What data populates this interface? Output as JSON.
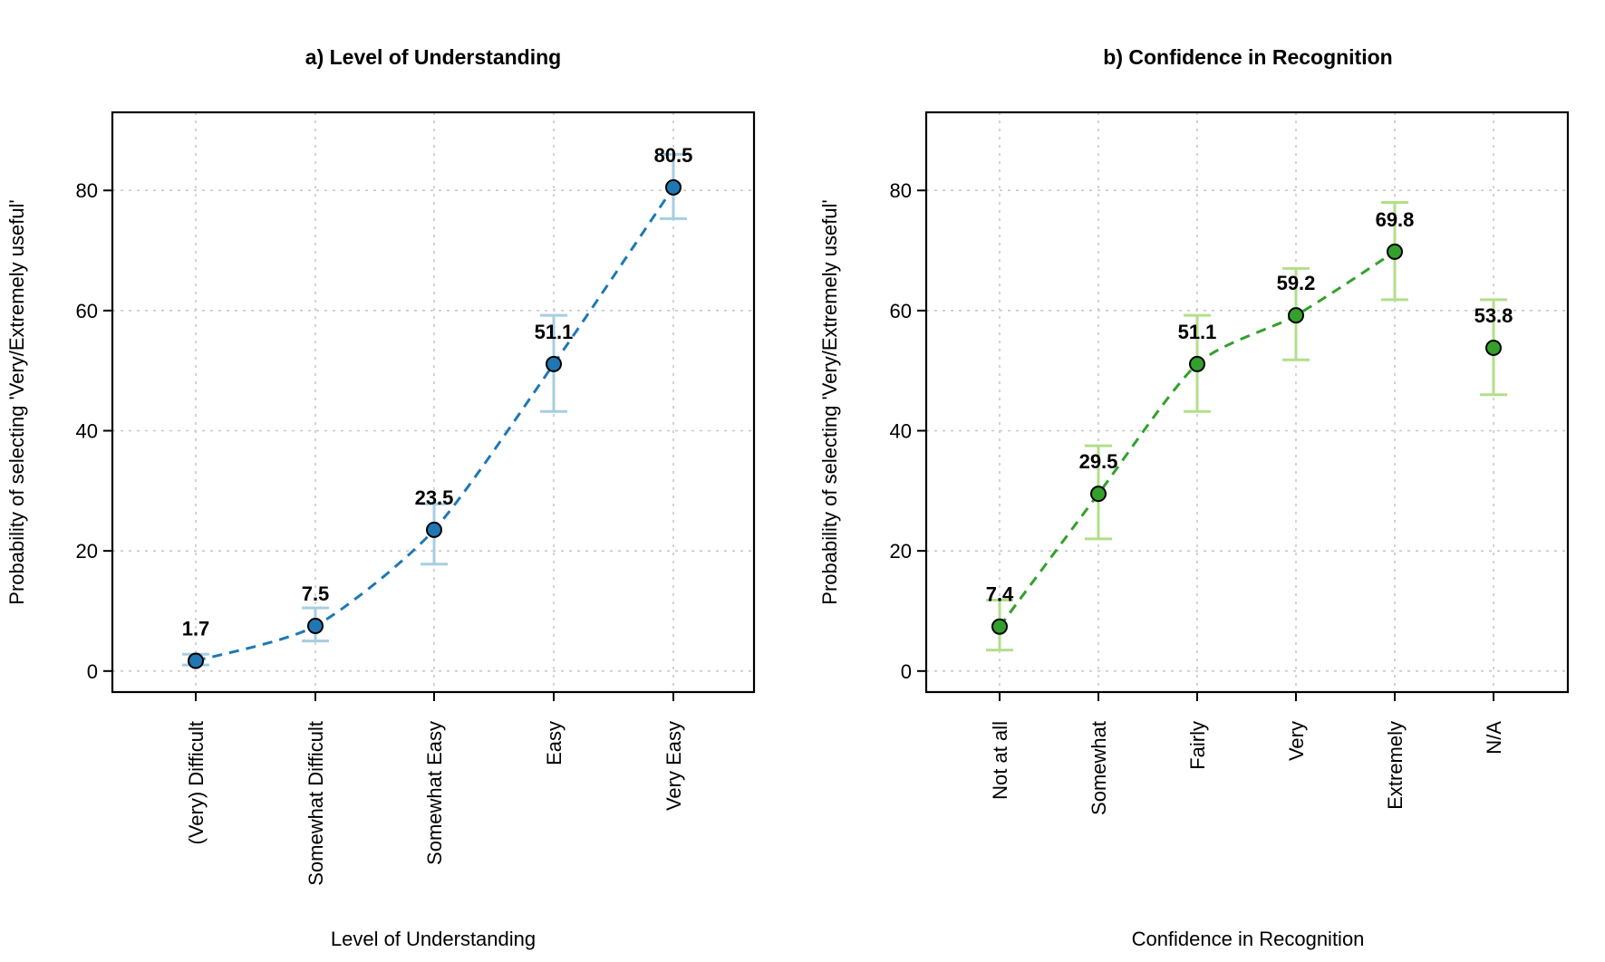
{
  "colors": {
    "panel_a_line": "#1f78b4",
    "panel_a_point": "#1f78b4",
    "panel_a_error": "#a6cee3",
    "panel_b_line": "#33a02c",
    "panel_b_point": "#33a02c",
    "panel_b_error": "#b2df8a"
  },
  "chart_data": [
    {
      "type": "line",
      "title": "a) Level of Understanding",
      "xlabel": "Level of Understanding",
      "ylabel": "Probability of selecting 'Very/Extremely useful'",
      "categories": [
        "(Very) Difficult",
        "Somewhat Difficult",
        "Somewhat Easy",
        "Easy",
        "Very Easy"
      ],
      "values": [
        1.7,
        7.5,
        23.5,
        51.1,
        80.5
      ],
      "value_labels": [
        "1.7",
        "7.5",
        "23.5",
        "51.1",
        "80.5"
      ],
      "lower": [
        1.0,
        5.0,
        17.8,
        43.2,
        75.3
      ],
      "upper": [
        2.8,
        10.5,
        27.8,
        59.2,
        86.0
      ],
      "connected": [
        true,
        true,
        true,
        true,
        true
      ],
      "ylim": [
        -3.5,
        93
      ],
      "yticks": [
        "0",
        "20",
        "40",
        "60",
        "80"
      ],
      "grid": true,
      "line_style": "dashed"
    },
    {
      "type": "line",
      "title": "b) Confidence in Recognition",
      "xlabel": "Confidence in Recognition",
      "ylabel": "Probability of selecting 'Very/Extremely useful'",
      "categories": [
        "Not at all",
        "Somewhat",
        "Fairly",
        "Very",
        "Extremely",
        "N/A"
      ],
      "values": [
        7.4,
        29.5,
        51.1,
        59.2,
        69.8,
        53.8
      ],
      "value_labels": [
        "7.4",
        "29.5",
        "51.1",
        "59.2",
        "69.8",
        "53.8"
      ],
      "lower": [
        3.5,
        22.0,
        43.2,
        51.8,
        61.8,
        46.0
      ],
      "upper": [
        11.8,
        37.5,
        59.2,
        67.0,
        78.0,
        61.8
      ],
      "connected": [
        true,
        true,
        true,
        true,
        true,
        false
      ],
      "ylim": [
        -3.5,
        93
      ],
      "yticks": [
        "0",
        "20",
        "40",
        "60",
        "80"
      ],
      "grid": true,
      "line_style": "dashed"
    }
  ]
}
